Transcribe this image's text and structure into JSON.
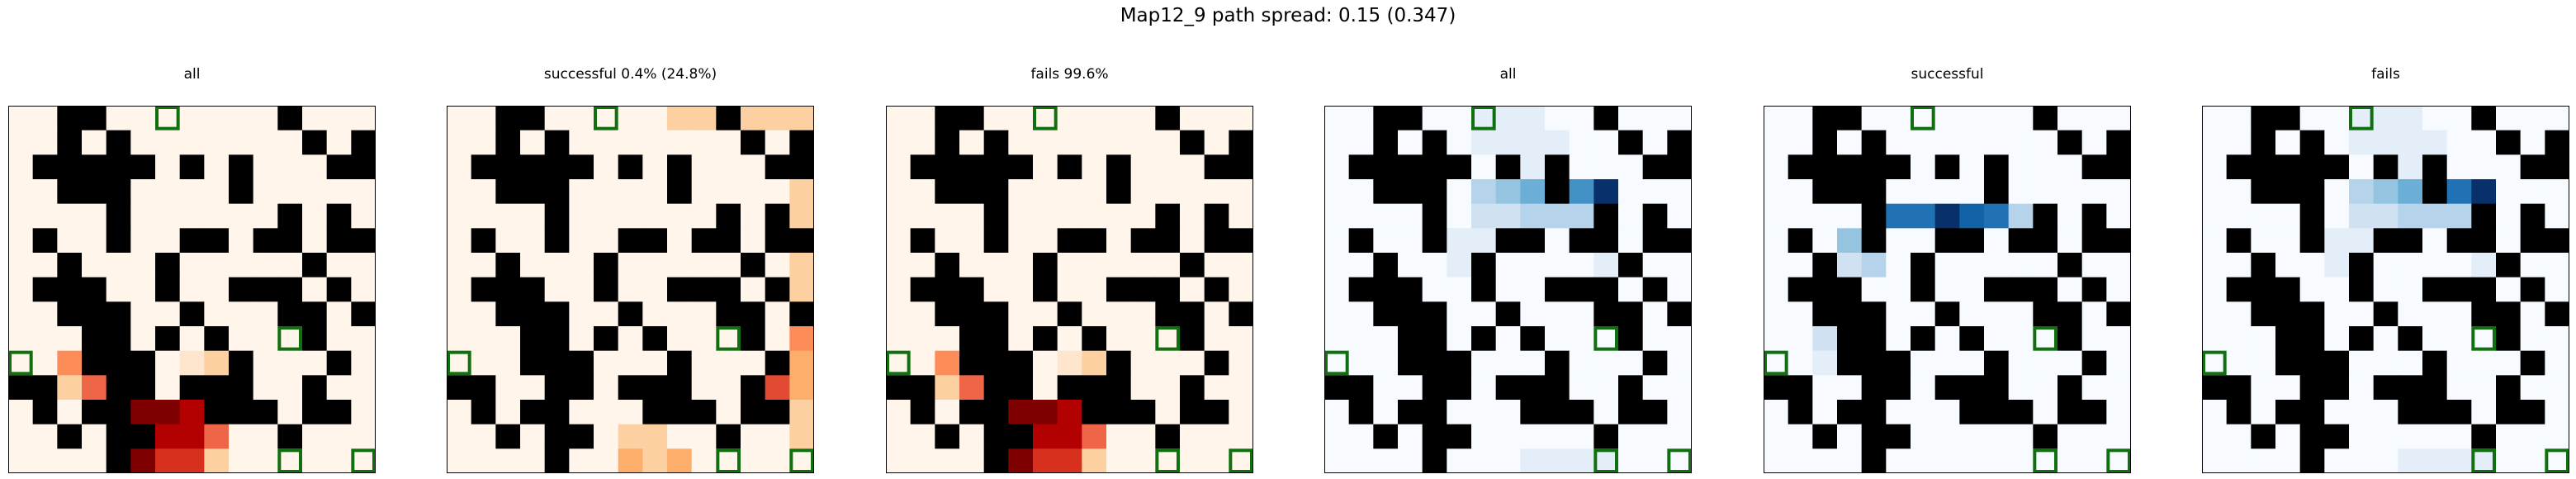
{
  "suptitle": "Map12_9 path spread: 0.15 (0.347)",
  "chart_data": [
    {
      "type": "heatmap",
      "title": "all",
      "colormap": "Oranges/Reds",
      "panel": 0
    },
    {
      "type": "heatmap",
      "title": "successful 0.4% (24.8%)",
      "colormap": "Oranges/Reds",
      "panel": 1
    },
    {
      "type": "heatmap",
      "title": "fails 99.6%",
      "colormap": "Oranges/Reds",
      "panel": 2
    },
    {
      "type": "heatmap",
      "title": "all",
      "colormap": "Blues",
      "panel": 3
    },
    {
      "type": "heatmap",
      "title": "successful",
      "colormap": "Blues",
      "panel": 4
    },
    {
      "type": "heatmap",
      "title": "fails",
      "colormap": "Blues",
      "panel": 5
    }
  ],
  "grid": {
    "size": 15,
    "walls": [
      "001100000001000",
      "001010000000101",
      "011111010100011",
      "001110000100000",
      "000010000001010",
      "010010011011011",
      "001000100000100",
      "011100100111010",
      "001110010001101",
      "000110101000100",
      "000111000100010",
      "110011011100100",
      "010110001110110",
      "001011000001000",
      "000010000000000"
    ],
    "goals": [
      [
        0,
        6
      ],
      [
        9,
        11
      ],
      [
        10,
        0
      ],
      [
        14,
        11
      ],
      [
        14,
        14
      ]
    ]
  },
  "heat": {
    "red_all": [
      "000000000000000",
      "000000000000000",
      "000000000000000",
      "000000000000000",
      "000000000000000",
      "000000000000000",
      "000000000000000",
      "000000000000000",
      "000000000000000",
      "000000000000000",
      "004000012200000",
      "002550021100000",
      "000089980000000",
      "001099885000000",
      "000089772000000"
    ],
    "red_succ": [
      "000000000222222",
      "000000000000002",
      "000000000000002",
      "000000000000002",
      "000000000000002",
      "000000000000002",
      "000000000000002",
      "000000000000002",
      "000000000000002",
      "000000000000004",
      "000000000000063",
      "000000000000063",
      "000000000000062",
      "000000022000002",
      "000000032300000"
    ],
    "red_fail": [
      "000000000000000",
      "000000000000000",
      "000000000000000",
      "000000000000000",
      "000000000000000",
      "000000000000000",
      "000000000000000",
      "000000000000000",
      "000000000000000",
      "000000000000000",
      "004000012200000",
      "002550021100000",
      "000089980000000",
      "001099885000000",
      "000089772000000"
    ],
    "blue_all": [
      "000000111000000",
      "000000111100000",
      "000000011200000",
      "000000345669000",
      "000000223332000",
      "000001110001000",
      "000001100001000",
      "000000000002000",
      "000000000000000",
      "000000000000000",
      "000000000000000",
      "000000000000000",
      "000000000000000",
      "000000000000000",
      "000000001111000"
    ],
    "blue_succ": [
      "000000000000000",
      "000000000000000",
      "000000000000000",
      "000000000000000",
      "000007798732000",
      "000470000000000",
      "000230000000000",
      "001000000000000",
      "000000000000000",
      "002000000000000",
      "001000000000000",
      "000000000000000",
      "000000000000000",
      "000000000000000",
      "000000000000000"
    ],
    "blue_fail": [
      "000000111000000",
      "000000111100000",
      "000000011200000",
      "000000345679000",
      "000000223332000",
      "000001110001000",
      "000001100001000",
      "000000000002000",
      "000000000000000",
      "000000000000000",
      "000000000000000",
      "000000000000000",
      "000000000000000",
      "000000000000000",
      "000000001111000"
    ]
  },
  "colors": {
    "wall": "#000000",
    "goal_outline": "#107010",
    "red_ramp": [
      "#fff5eb",
      "#fee6ce",
      "#fdd0a2",
      "#fdae6b",
      "#fc8d59",
      "#ef6548",
      "#e34a33",
      "#d7301f",
      "#b30000",
      "#7f0000"
    ],
    "blue_ramp": [
      "#f7fbff",
      "#e4eef8",
      "#d0e1f2",
      "#b5d3ea",
      "#94c4df",
      "#6baed6",
      "#4292c6",
      "#2171b5",
      "#1262a8",
      "#08306b"
    ]
  }
}
